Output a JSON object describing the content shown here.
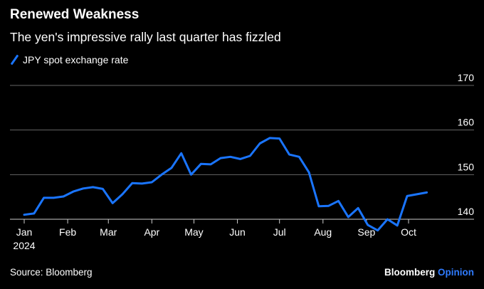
{
  "header": {
    "title": "Renewed Weakness",
    "subtitle": "The yen's impressive rally last quarter has fizzled"
  },
  "legend": {
    "label": "JPY spot exchange rate"
  },
  "footer": {
    "source": "Source: Bloomberg",
    "brand_main": "Bloomberg",
    "brand_accent": "Opinion"
  },
  "colors": {
    "series": "#1a75ff",
    "background": "#000000",
    "gridline": "#666666",
    "brand_accent": "#2f7bff"
  },
  "chart_data": {
    "type": "line",
    "title": "Renewed Weakness",
    "subtitle": "The yen's impressive rally last quarter has fizzled",
    "xlabel": "",
    "ylabel": "",
    "ylim": [
      140,
      170
    ],
    "yticks": [
      140,
      150,
      160,
      170
    ],
    "y_axis_side": "right",
    "grid": true,
    "legend_position": "top-left",
    "x_ticks": [
      "Jan",
      "Feb",
      "Mar",
      "Apr",
      "May",
      "Jun",
      "Jul",
      "Aug",
      "Sep",
      "Oct"
    ],
    "x_tick_year": "2024",
    "series": [
      {
        "name": "JPY spot exchange rate",
        "x": [
          "2024-01-01",
          "2024-01-08",
          "2024-01-15",
          "2024-01-22",
          "2024-01-29",
          "2024-02-05",
          "2024-02-12",
          "2024-02-19",
          "2024-02-26",
          "2024-03-04",
          "2024-03-11",
          "2024-03-18",
          "2024-03-25",
          "2024-04-01",
          "2024-04-08",
          "2024-04-15",
          "2024-04-22",
          "2024-04-29",
          "2024-05-06",
          "2024-05-13",
          "2024-05-20",
          "2024-05-27",
          "2024-06-03",
          "2024-06-10",
          "2024-06-17",
          "2024-06-24",
          "2024-07-01",
          "2024-07-08",
          "2024-07-15",
          "2024-07-22",
          "2024-07-29",
          "2024-08-05",
          "2024-08-12",
          "2024-08-19",
          "2024-08-26",
          "2024-09-02",
          "2024-09-09",
          "2024-09-16",
          "2024-09-23",
          "2024-09-30",
          "2024-10-07",
          "2024-10-14"
        ],
        "values": [
          141.0,
          141.3,
          144.8,
          144.8,
          145.1,
          146.2,
          146.9,
          147.2,
          146.8,
          143.6,
          145.6,
          148.1,
          148.0,
          148.3,
          150.0,
          151.5,
          154.8,
          150.0,
          152.4,
          152.3,
          153.7,
          154.0,
          153.5,
          154.2,
          157.0,
          158.2,
          158.1,
          154.5,
          154.0,
          150.5,
          142.9,
          143.0,
          144.1,
          140.5,
          142.5,
          138.7,
          137.5,
          140.0,
          138.6,
          145.2,
          145.6,
          146.0
        ]
      }
    ]
  }
}
